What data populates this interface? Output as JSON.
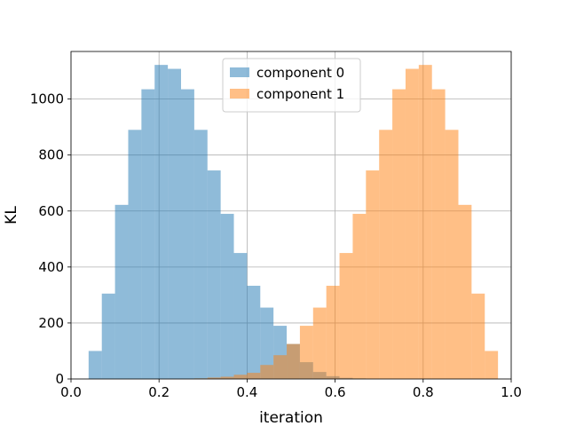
{
  "chart_data": {
    "type": "bar",
    "title": "",
    "xlabel": "iteration",
    "ylabel": "KL",
    "xlim": [
      0.0,
      1.0
    ],
    "ylim": [
      0,
      1170
    ],
    "xticks": [
      0.0,
      0.2,
      0.4,
      0.6,
      0.8,
      1.0
    ],
    "xtick_labels": [
      "0.0",
      "0.2",
      "0.4",
      "0.6",
      "0.8",
      "1.0"
    ],
    "yticks": [
      0,
      200,
      400,
      600,
      800,
      1000
    ],
    "ytick_labels": [
      "0",
      "200",
      "400",
      "600",
      "800",
      "1000"
    ],
    "grid": true,
    "legend_position": "top-center",
    "bin_width": 0.03,
    "series": [
      {
        "name": "component 0",
        "color": "#1f77b4",
        "opacity": 0.5,
        "bin_starts": [
          0.04,
          0.07,
          0.1,
          0.13,
          0.16,
          0.19,
          0.22,
          0.25,
          0.28,
          0.31,
          0.34,
          0.37,
          0.4,
          0.43,
          0.46,
          0.49,
          0.52,
          0.55,
          0.58,
          0.61,
          0.64
        ],
        "values": [
          100,
          305,
          622,
          890,
          1035,
          1122,
          1108,
          1035,
          890,
          745,
          590,
          450,
          333,
          255,
          190,
          125,
          60,
          25,
          10,
          4,
          2
        ]
      },
      {
        "name": "component 1",
        "color": "#ff7f0e",
        "opacity": 0.5,
        "bin_starts": [
          0.28,
          0.31,
          0.34,
          0.37,
          0.4,
          0.43,
          0.46,
          0.49,
          0.52,
          0.55,
          0.58,
          0.61,
          0.64,
          0.67,
          0.7,
          0.73,
          0.76,
          0.79,
          0.82,
          0.85,
          0.88,
          0.91,
          0.94
        ],
        "values": [
          2,
          5,
          8,
          15,
          22,
          50,
          85,
          125,
          190,
          255,
          333,
          450,
          590,
          745,
          890,
          1035,
          1108,
          1122,
          1035,
          890,
          622,
          305,
          100
        ]
      }
    ]
  }
}
